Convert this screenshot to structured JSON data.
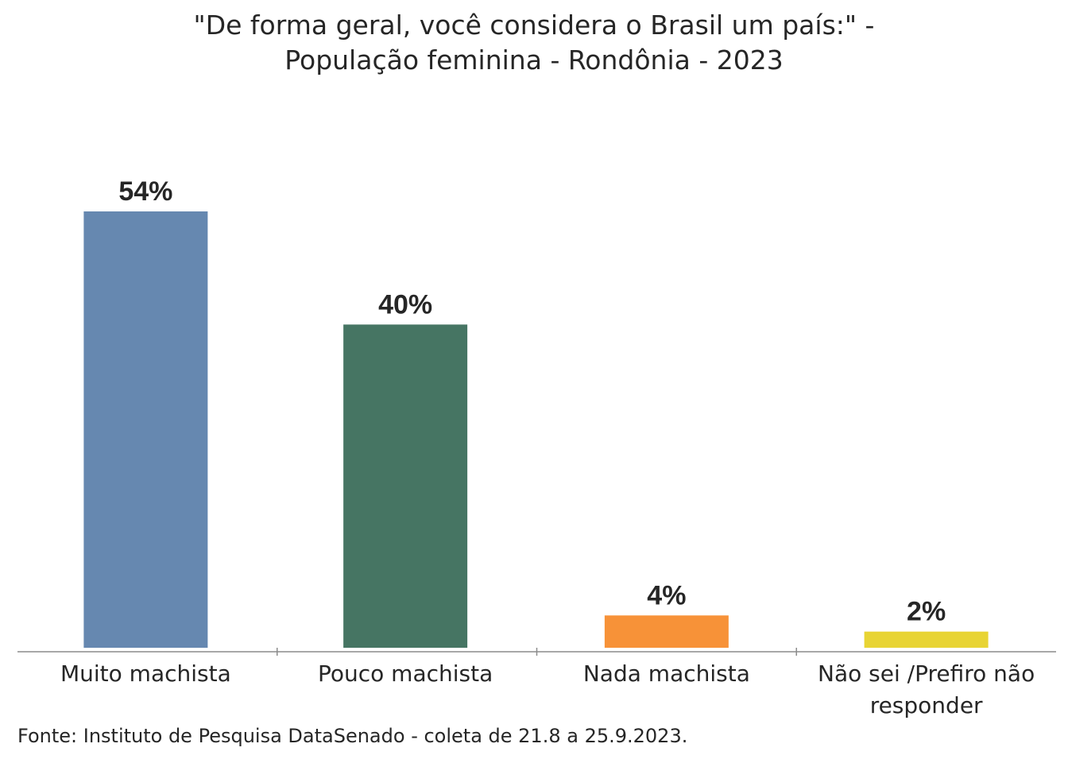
{
  "chart_data": {
    "type": "bar",
    "title_lines": [
      "\"De forma geral, você considera o Brasil um país:\" -",
      "População feminina - Rondônia - 2023"
    ],
    "categories": [
      [
        "Muito machista"
      ],
      [
        "Pouco machista"
      ],
      [
        "Nada machista"
      ],
      [
        "Não sei /Prefiro não",
        "responder"
      ]
    ],
    "values": [
      54,
      40,
      4,
      2
    ],
    "value_labels": [
      "54%",
      "40%",
      "4%",
      "2%"
    ],
    "colors": [
      "#6688b0",
      "#467563",
      "#f79238",
      "#e8d434"
    ],
    "ylim": [
      0,
      100
    ],
    "grid": false,
    "legend": false,
    "source": "Fonte: Instituto de Pesquisa DataSenado - coleta de 21.8 a 25.9.2023."
  }
}
